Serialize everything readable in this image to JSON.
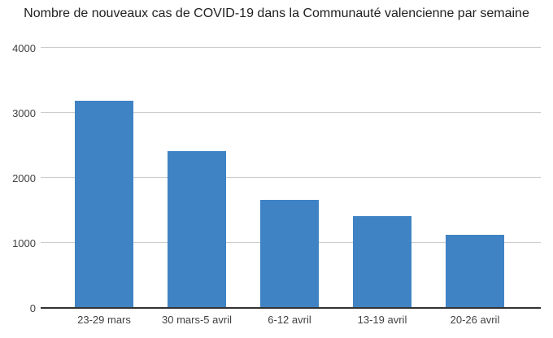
{
  "chart_data": {
    "type": "bar",
    "title": "Nombre de nouveaux cas de COVID-19 dans la Communauté valencienne par semaine",
    "categories": [
      "23-29 mars",
      "30 mars-5 avril",
      "6-12 avril",
      "13-19 avril",
      "20-26 avril"
    ],
    "values": [
      3190,
      2410,
      1660,
      1410,
      1120
    ],
    "xlabel": "",
    "ylabel": "",
    "ylim": [
      0,
      4000
    ],
    "yticks": [
      0,
      1000,
      2000,
      3000,
      4000
    ],
    "grid": true,
    "legend": "none",
    "colors": {
      "bar": "#3F83C4",
      "gridline": "#CCCCCC",
      "axis_line": "#333333",
      "title_text": "#212121",
      "label_text": "#424242",
      "background": "#FFFFFF"
    }
  }
}
